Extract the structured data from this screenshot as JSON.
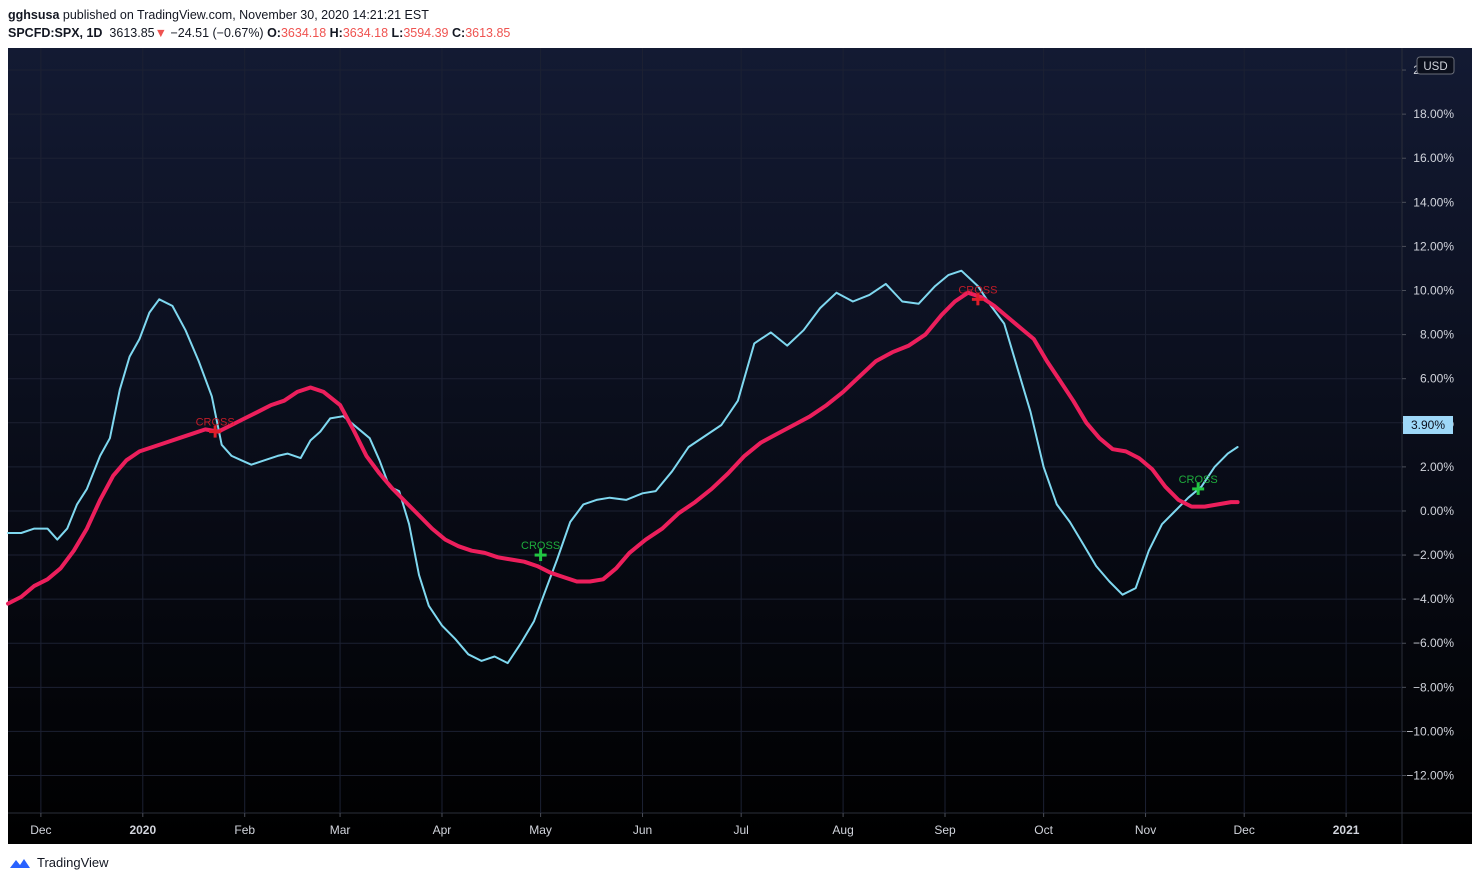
{
  "header": {
    "publisher": "gghsusa",
    "published_text": "published on TradingView.com, November 30, 2020 14:21:21 EST",
    "symbol": "SPCFD:SPX, 1D",
    "last": "3613.85",
    "down_arrow": "▼",
    "change": "−24.51 (−0.67%)",
    "o_label": "O:",
    "o_value": "3634.18",
    "h_label": "H:",
    "h_value": "3634.18",
    "l_label": "L:",
    "l_value": "3594.39",
    "c_label": "C:",
    "c_value": "3613.85"
  },
  "footer": {
    "brand": "TradingView"
  },
  "colors": {
    "bg_top": "#131a33",
    "bg_bottom": "#000000",
    "fast_line": "#7fd8f0",
    "slow_line": "#ec1f5c",
    "cross_up": "#22c743",
    "cross_down": "#e01e2a",
    "axis_text": "#d1d4dc",
    "price_label_bg": "#9ed8f8"
  },
  "chart_data": {
    "type": "line",
    "currency": "USD",
    "last_value_label": "3.90%",
    "y_unit": "%",
    "ylim": [
      -13.7,
      21.0
    ],
    "y_ticks": [
      -12,
      -10,
      -8,
      -6,
      -4,
      -2,
      0,
      2,
      4,
      6,
      8,
      10,
      12,
      14,
      16,
      18,
      20
    ],
    "y_tick_labels": [
      "−12.00%",
      "−10.00%",
      "−8.00%",
      "−6.00%",
      "−4.00%",
      "−2.00%",
      "0.00%",
      "2.00%",
      "4.00%",
      "6.00%",
      "8.00%",
      "10.00%",
      "12.00%",
      "14.00%",
      "16.00%",
      "18.00%",
      "20.00%"
    ],
    "x_range": [
      "2019-11-21",
      "2021-01-18"
    ],
    "x_ticks": [
      {
        "date": "2019-12-01",
        "label": "Dec"
      },
      {
        "date": "2020-01-01",
        "label": "2020",
        "bold": true
      },
      {
        "date": "2020-02-01",
        "label": "Feb"
      },
      {
        "date": "2020-03-01",
        "label": "Mar"
      },
      {
        "date": "2020-04-01",
        "label": "Apr"
      },
      {
        "date": "2020-05-01",
        "label": "May"
      },
      {
        "date": "2020-06-01",
        "label": "Jun"
      },
      {
        "date": "2020-07-01",
        "label": "Jul"
      },
      {
        "date": "2020-08-01",
        "label": "Aug"
      },
      {
        "date": "2020-09-01",
        "label": "Sep"
      },
      {
        "date": "2020-10-01",
        "label": "Oct"
      },
      {
        "date": "2020-11-01",
        "label": "Nov"
      },
      {
        "date": "2020-12-01",
        "label": "Dec"
      },
      {
        "date": "2021-01-01",
        "label": "2021",
        "bold": true
      }
    ],
    "series": [
      {
        "x": [
          "2019-11-21",
          "2019-11-25",
          "2019-11-29",
          "2019-12-03",
          "2019-12-06",
          "2019-12-09",
          "2019-12-12",
          "2019-12-15",
          "2019-12-19",
          "2019-12-22",
          "2019-12-25",
          "2019-12-28",
          "2019-12-31",
          "2020-01-03",
          "2020-01-06",
          "2020-01-10",
          "2020-01-14",
          "2020-01-18",
          "2020-01-22",
          "2020-01-25",
          "2020-01-28",
          "2020-01-31",
          "2020-02-03",
          "2020-02-07",
          "2020-02-11",
          "2020-02-14",
          "2020-02-18",
          "2020-02-21",
          "2020-02-24",
          "2020-02-27",
          "2020-03-02",
          "2020-03-06",
          "2020-03-10",
          "2020-03-13",
          "2020-03-16",
          "2020-03-19",
          "2020-03-22",
          "2020-03-25",
          "2020-03-28",
          "2020-04-01",
          "2020-04-05",
          "2020-04-09",
          "2020-04-13",
          "2020-04-17",
          "2020-04-21",
          "2020-04-25",
          "2020-04-29",
          "2020-05-02",
          "2020-05-06",
          "2020-05-10",
          "2020-05-14",
          "2020-05-18",
          "2020-05-22",
          "2020-05-27",
          "2020-06-01",
          "2020-06-05",
          "2020-06-10",
          "2020-06-15",
          "2020-06-20",
          "2020-06-25",
          "2020-06-30",
          "2020-07-05",
          "2020-07-10",
          "2020-07-15",
          "2020-07-20",
          "2020-07-25",
          "2020-07-30",
          "2020-08-04",
          "2020-08-09",
          "2020-08-14",
          "2020-08-19",
          "2020-08-24",
          "2020-08-29",
          "2020-09-02",
          "2020-09-06",
          "2020-09-11",
          "2020-09-15",
          "2020-09-19",
          "2020-09-23",
          "2020-09-27",
          "2020-10-01",
          "2020-10-05",
          "2020-10-09",
          "2020-10-13",
          "2020-10-17",
          "2020-10-21",
          "2020-10-25",
          "2020-10-29",
          "2020-11-02",
          "2020-11-06",
          "2020-11-10",
          "2020-11-14",
          "2020-11-18",
          "2020-11-22",
          "2020-11-26",
          "2020-11-29"
        ],
        "values": [
          -1.0,
          -1.0,
          -0.8,
          -0.8,
          -1.3,
          -0.8,
          0.3,
          1.0,
          2.5,
          3.3,
          5.5,
          7.0,
          7.8,
          9.0,
          9.6,
          9.3,
          8.2,
          6.8,
          5.2,
          3.0,
          2.5,
          2.3,
          2.1,
          2.3,
          2.5,
          2.6,
          2.4,
          3.2,
          3.6,
          4.2,
          4.3,
          3.8,
          3.3,
          2.3,
          1.1,
          0.9,
          -0.6,
          -2.9,
          -4.3,
          -5.2,
          -5.8,
          -6.5,
          -6.8,
          -6.6,
          -6.9,
          -6.0,
          -5.0,
          -3.8,
          -2.2,
          -0.5,
          0.3,
          0.5,
          0.6,
          0.5,
          0.8,
          0.9,
          1.8,
          2.9,
          3.4,
          3.9,
          5.0,
          7.6,
          8.1,
          7.5,
          8.2,
          9.2,
          9.9,
          9.5,
          9.8,
          10.3,
          9.5,
          9.4,
          10.2,
          10.7,
          10.9,
          10.2,
          9.3,
          8.5,
          6.5,
          4.5,
          2.0,
          0.3,
          -0.5,
          -1.5,
          -2.5,
          -3.2,
          -3.8,
          -3.5,
          -1.8,
          -0.6,
          0.0,
          0.6,
          1.1,
          2.0,
          2.6,
          2.9
        ]
      },
      {
        "x": [
          "2019-11-21",
          "2019-11-25",
          "2019-11-29",
          "2019-12-03",
          "2019-12-07",
          "2019-12-11",
          "2019-12-15",
          "2019-12-19",
          "2019-12-23",
          "2019-12-27",
          "2019-12-31",
          "2020-01-04",
          "2020-01-08",
          "2020-01-12",
          "2020-01-16",
          "2020-01-20",
          "2020-01-24",
          "2020-01-28",
          "2020-02-01",
          "2020-02-05",
          "2020-02-09",
          "2020-02-13",
          "2020-02-17",
          "2020-02-21",
          "2020-02-25",
          "2020-03-01",
          "2020-03-05",
          "2020-03-09",
          "2020-03-13",
          "2020-03-17",
          "2020-03-21",
          "2020-03-25",
          "2020-03-29",
          "2020-04-02",
          "2020-04-06",
          "2020-04-10",
          "2020-04-14",
          "2020-04-18",
          "2020-04-22",
          "2020-04-26",
          "2020-04-30",
          "2020-05-04",
          "2020-05-08",
          "2020-05-12",
          "2020-05-16",
          "2020-05-20",
          "2020-05-24",
          "2020-05-28",
          "2020-06-02",
          "2020-06-07",
          "2020-06-12",
          "2020-06-17",
          "2020-06-22",
          "2020-06-27",
          "2020-07-02",
          "2020-07-07",
          "2020-07-12",
          "2020-07-17",
          "2020-07-22",
          "2020-07-27",
          "2020-08-01",
          "2020-08-06",
          "2020-08-11",
          "2020-08-16",
          "2020-08-21",
          "2020-08-26",
          "2020-08-31",
          "2020-09-04",
          "2020-09-08",
          "2020-09-12",
          "2020-09-16",
          "2020-09-20",
          "2020-09-24",
          "2020-09-28",
          "2020-10-02",
          "2020-10-06",
          "2020-10-10",
          "2020-10-14",
          "2020-10-18",
          "2020-10-22",
          "2020-10-26",
          "2020-10-30",
          "2020-11-03",
          "2020-11-07",
          "2020-11-11",
          "2020-11-15",
          "2020-11-19",
          "2020-11-23",
          "2020-11-27",
          "2020-11-29"
        ],
        "values": [
          -4.2,
          -3.9,
          -3.4,
          -3.1,
          -2.6,
          -1.8,
          -0.8,
          0.5,
          1.6,
          2.3,
          2.7,
          2.9,
          3.1,
          3.3,
          3.5,
          3.7,
          3.6,
          3.9,
          4.2,
          4.5,
          4.8,
          5.0,
          5.4,
          5.6,
          5.4,
          4.8,
          3.7,
          2.5,
          1.7,
          1.0,
          0.4,
          -0.2,
          -0.8,
          -1.3,
          -1.6,
          -1.8,
          -1.9,
          -2.1,
          -2.2,
          -2.3,
          -2.5,
          -2.8,
          -3.0,
          -3.2,
          -3.2,
          -3.1,
          -2.6,
          -1.9,
          -1.3,
          -0.8,
          -0.1,
          0.4,
          1.0,
          1.7,
          2.5,
          3.1,
          3.5,
          3.9,
          4.3,
          4.8,
          5.4,
          6.1,
          6.8,
          7.2,
          7.5,
          8.0,
          8.9,
          9.5,
          9.9,
          9.7,
          9.3,
          8.8,
          8.3,
          7.8,
          6.8,
          5.9,
          5.0,
          4.0,
          3.3,
          2.8,
          2.7,
          2.4,
          1.9,
          1.1,
          0.5,
          0.2,
          0.2,
          0.3,
          0.4,
          0.4
        ]
      }
    ],
    "annotations": [
      {
        "date": "2020-01-23",
        "value": 3.6,
        "text": "CROSS",
        "direction": "down"
      },
      {
        "date": "2020-05-01",
        "value": -2.0,
        "text": "CROSS",
        "direction": "up"
      },
      {
        "date": "2020-09-11",
        "value": 9.6,
        "text": "CROSS",
        "direction": "down"
      },
      {
        "date": "2020-11-17",
        "value": 1.0,
        "text": "CROSS",
        "direction": "up"
      }
    ]
  }
}
